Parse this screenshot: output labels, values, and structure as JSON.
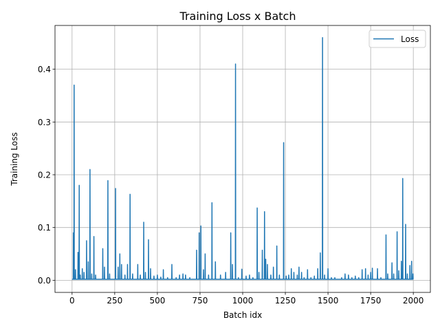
{
  "chart_data": {
    "type": "line",
    "title": "Training Loss x Batch",
    "xlabel": "Batch idx",
    "ylabel": "Training Loss",
    "xlim": [
      -100,
      2100
    ],
    "ylim": [
      -0.023,
      0.483
    ],
    "xticks": [
      0,
      250,
      500,
      750,
      1000,
      1250,
      1500,
      1750,
      2000
    ],
    "xtick_labels": [
      "0",
      "250",
      "500",
      "750",
      "1000",
      "1250",
      "1500",
      "1750",
      "2000"
    ],
    "yticks": [
      0.0,
      0.1,
      0.2,
      0.3,
      0.4
    ],
    "ytick_labels": [
      "0.0",
      "0.1",
      "0.2",
      "0.3",
      "0.4"
    ],
    "grid": true,
    "legend_position": "top-right",
    "color": "#1f77b4",
    "series": [
      {
        "name": "Loss",
        "baseline": 0.002,
        "n_points": 2000,
        "spikes": [
          [
            8,
            0.09
          ],
          [
            12,
            0.37
          ],
          [
            20,
            0.02
          ],
          [
            35,
            0.053
          ],
          [
            42,
            0.18
          ],
          [
            48,
            0.01
          ],
          [
            60,
            0.022
          ],
          [
            70,
            0.015
          ],
          [
            85,
            0.075
          ],
          [
            95,
            0.035
          ],
          [
            105,
            0.21
          ],
          [
            115,
            0.012
          ],
          [
            128,
            0.083
          ],
          [
            138,
            0.01
          ],
          [
            180,
            0.06
          ],
          [
            190,
            0.025
          ],
          [
            210,
            0.189
          ],
          [
            220,
            0.012
          ],
          [
            255,
            0.174
          ],
          [
            270,
            0.025
          ],
          [
            280,
            0.05
          ],
          [
            290,
            0.03
          ],
          [
            310,
            0.01
          ],
          [
            325,
            0.03
          ],
          [
            340,
            0.163
          ],
          [
            355,
            0.012
          ],
          [
            385,
            0.03
          ],
          [
            400,
            0.01
          ],
          [
            420,
            0.11
          ],
          [
            430,
            0.015
          ],
          [
            448,
            0.077
          ],
          [
            460,
            0.022
          ],
          [
            480,
            0.008
          ],
          [
            500,
            0.01
          ],
          [
            520,
            0.006
          ],
          [
            535,
            0.02
          ],
          [
            560,
            0.005
          ],
          [
            585,
            0.03
          ],
          [
            610,
            0.005
          ],
          [
            630,
            0.01
          ],
          [
            650,
            0.012
          ],
          [
            665,
            0.01
          ],
          [
            690,
            0.005
          ],
          [
            730,
            0.057
          ],
          [
            745,
            0.09
          ],
          [
            755,
            0.103
          ],
          [
            770,
            0.02
          ],
          [
            780,
            0.05
          ],
          [
            800,
            0.01
          ],
          [
            820,
            0.147
          ],
          [
            840,
            0.035
          ],
          [
            870,
            0.01
          ],
          [
            900,
            0.015
          ],
          [
            930,
            0.09
          ],
          [
            940,
            0.03
          ],
          [
            958,
            0.41
          ],
          [
            975,
            0.005
          ],
          [
            995,
            0.021
          ],
          [
            1020,
            0.008
          ],
          [
            1040,
            0.01
          ],
          [
            1060,
            0.005
          ],
          [
            1085,
            0.137
          ],
          [
            1095,
            0.015
          ],
          [
            1115,
            0.057
          ],
          [
            1128,
            0.13
          ],
          [
            1135,
            0.04
          ],
          [
            1145,
            0.03
          ],
          [
            1165,
            0.01
          ],
          [
            1180,
            0.025
          ],
          [
            1200,
            0.065
          ],
          [
            1215,
            0.01
          ],
          [
            1240,
            0.261
          ],
          [
            1255,
            0.008
          ],
          [
            1270,
            0.01
          ],
          [
            1285,
            0.022
          ],
          [
            1300,
            0.015
          ],
          [
            1320,
            0.01
          ],
          [
            1330,
            0.025
          ],
          [
            1345,
            0.015
          ],
          [
            1360,
            0.005
          ],
          [
            1380,
            0.02
          ],
          [
            1400,
            0.005
          ],
          [
            1420,
            0.008
          ],
          [
            1440,
            0.022
          ],
          [
            1455,
            0.052
          ],
          [
            1468,
            0.46
          ],
          [
            1480,
            0.01
          ],
          [
            1500,
            0.022
          ],
          [
            1520,
            0.005
          ],
          [
            1540,
            0.005
          ],
          [
            1580,
            0.005
          ],
          [
            1600,
            0.012
          ],
          [
            1620,
            0.01
          ],
          [
            1640,
            0.005
          ],
          [
            1660,
            0.008
          ],
          [
            1680,
            0.005
          ],
          [
            1700,
            0.02
          ],
          [
            1720,
            0.022
          ],
          [
            1735,
            0.01
          ],
          [
            1750,
            0.015
          ],
          [
            1760,
            0.023
          ],
          [
            1790,
            0.022
          ],
          [
            1810,
            0.005
          ],
          [
            1840,
            0.086
          ],
          [
            1850,
            0.012
          ],
          [
            1875,
            0.033
          ],
          [
            1885,
            0.012
          ],
          [
            1905,
            0.092
          ],
          [
            1915,
            0.018
          ],
          [
            1930,
            0.036
          ],
          [
            1938,
            0.193
          ],
          [
            1955,
            0.106
          ],
          [
            1965,
            0.012
          ],
          [
            1980,
            0.028
          ],
          [
            1990,
            0.036
          ],
          [
            1998,
            0.012
          ]
        ]
      }
    ]
  }
}
